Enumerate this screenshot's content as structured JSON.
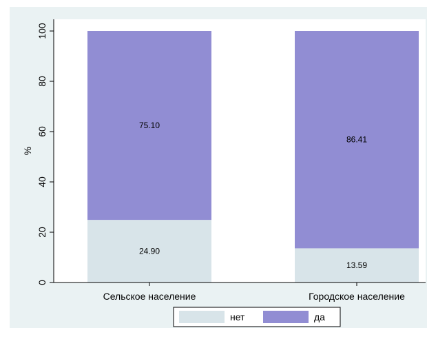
{
  "chart_data": {
    "type": "bar",
    "stacked": true,
    "categories": [
      "Сельское население",
      "Городское население"
    ],
    "series": [
      {
        "name": "нет",
        "values": [
          24.9,
          13.59
        ],
        "labels": [
          "24.90",
          "13.59"
        ],
        "color": "#d8e4e9"
      },
      {
        "name": "да",
        "values": [
          75.1,
          86.41
        ],
        "labels": [
          "75.10",
          "86.41"
        ],
        "color": "#918dd3"
      }
    ],
    "ylabel": "%",
    "ylim": [
      0,
      100
    ],
    "yticks": [
      0,
      20,
      40,
      60,
      80,
      100
    ],
    "grid": false,
    "legend": "bottom"
  }
}
